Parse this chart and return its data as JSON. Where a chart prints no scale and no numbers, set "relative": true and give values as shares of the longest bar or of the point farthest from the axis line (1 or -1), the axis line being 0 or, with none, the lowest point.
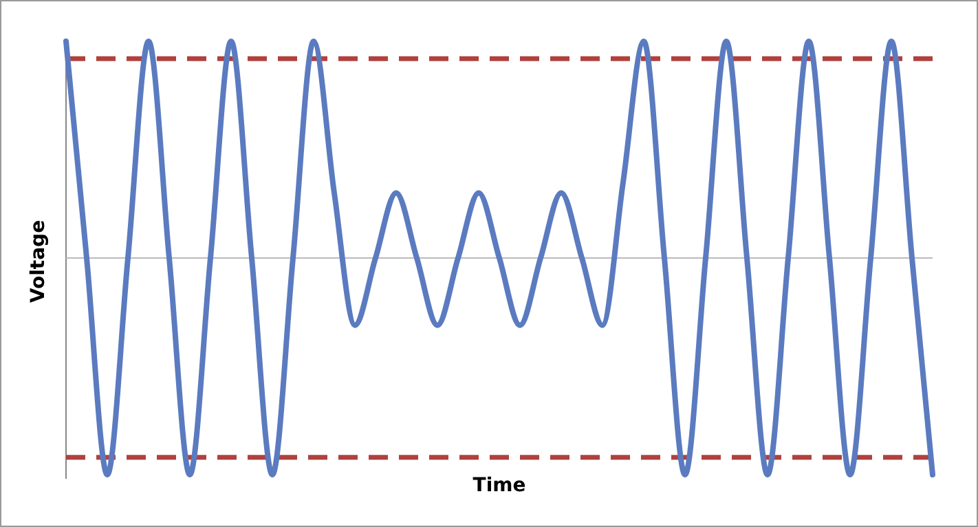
{
  "chart_data": {
    "type": "line",
    "xlabel": "Time",
    "ylabel": "Voltage",
    "relative": true,
    "categories": [
      null,
      null,
      null,
      null,
      null,
      null,
      null,
      null,
      null,
      null,
      null,
      null,
      null,
      null,
      null,
      null,
      null,
      null,
      null,
      null,
      null,
      null,
      null,
      null,
      null,
      null,
      null,
      null,
      null,
      null,
      null,
      null,
      null,
      null,
      null,
      null,
      null,
      null,
      null,
      null,
      null,
      null,
      null
    ],
    "series": [
      {
        "color": "#5b7bc0",
        "values": [
          1,
          0,
          -1,
          0,
          1,
          0,
          -1,
          0,
          1,
          0,
          -1,
          0,
          1,
          0.3,
          -0.31,
          0,
          0.3,
          0,
          -0.31,
          0,
          0.3,
          0,
          -0.31,
          0,
          0.3,
          0,
          -0.31,
          0.35,
          1,
          0,
          -1,
          0,
          1,
          0,
          -1,
          0,
          1,
          0,
          -1,
          0,
          1,
          0,
          -1
        ]
      }
    ],
    "ref_lines": [
      {
        "axis": "y",
        "value": 0.92,
        "color": "#b0413e",
        "line_style": "dashed"
      },
      {
        "axis": "y",
        "value": -0.92,
        "color": "#b0413e",
        "line_style": "dashed"
      }
    ]
  }
}
